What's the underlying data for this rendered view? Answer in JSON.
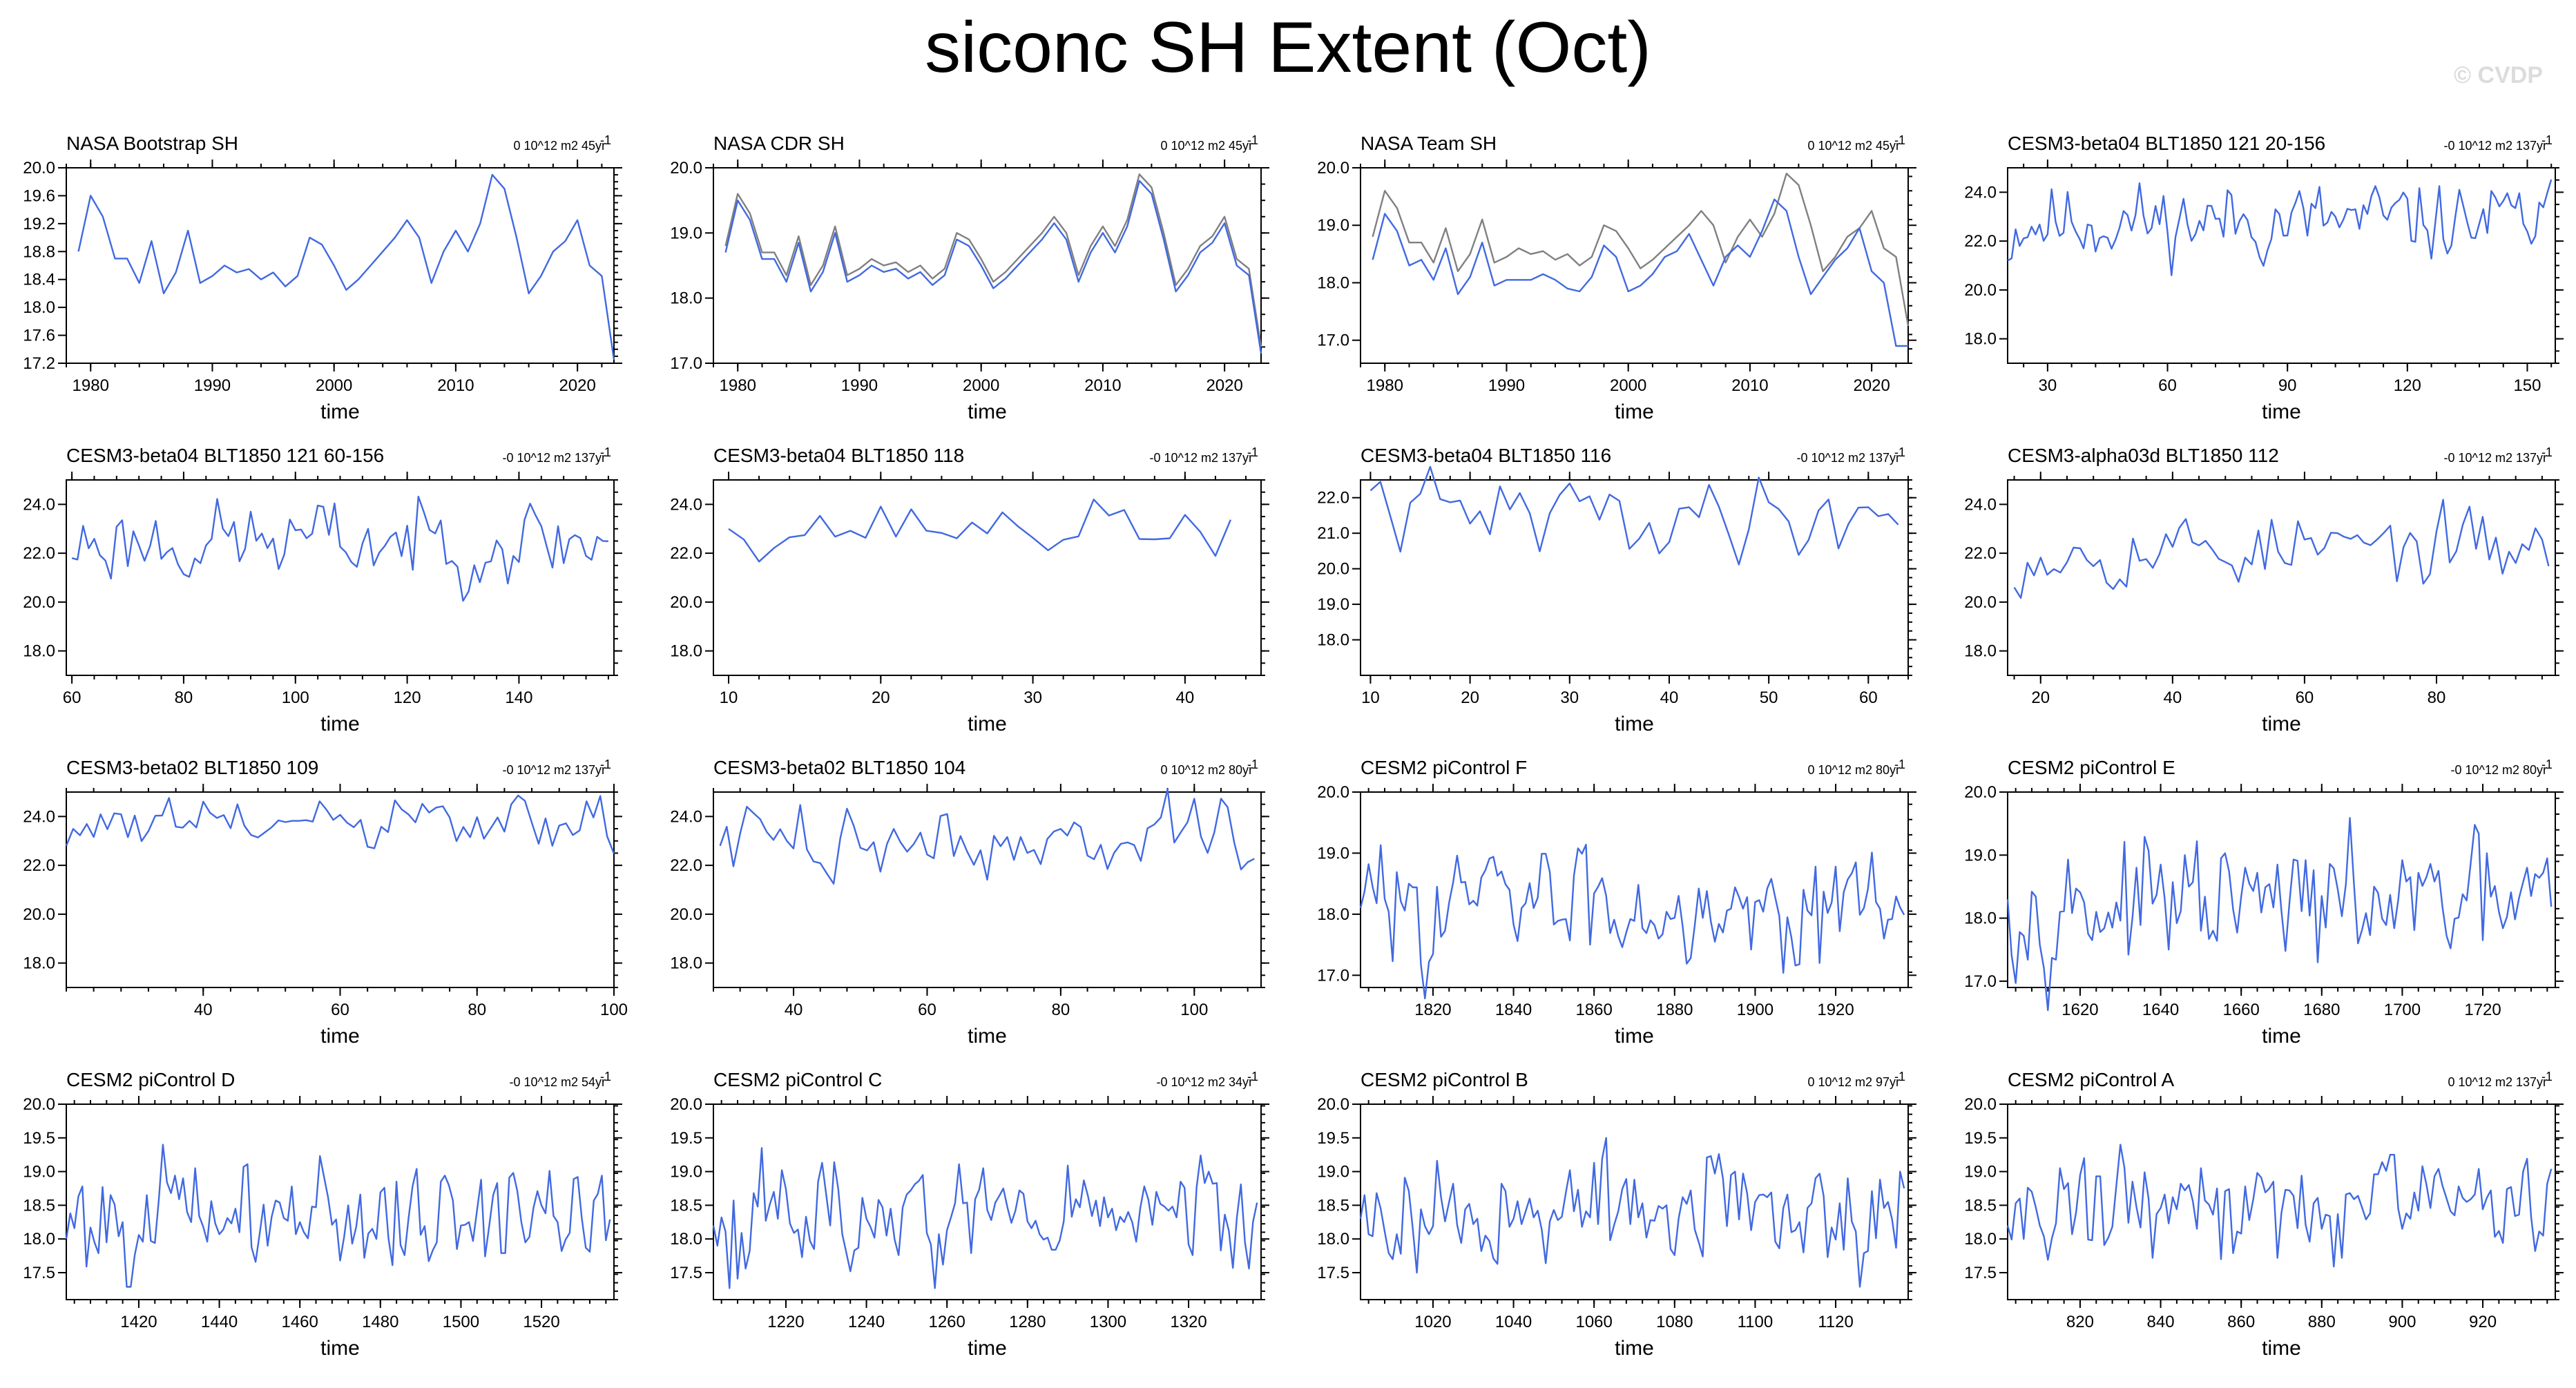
{
  "title": "siconc SH Extent (Oct)",
  "watermark": "© CVDP",
  "colors": {
    "model": "#4169e1",
    "obs": "#808080"
  },
  "chart_data": [
    {
      "type": "line",
      "title": "NASA Bootstrap SH",
      "trend": "0 10^12 m2 45yr",
      "xlabel": "time",
      "xlim": [
        1978,
        2023
      ],
      "ylim": [
        17.2,
        20.0
      ],
      "xticks": [
        1980,
        1990,
        2000,
        2010,
        2020
      ],
      "yticks": [
        "17.2",
        "17.6",
        "18.0",
        "18.4",
        "18.8",
        "19.2",
        "19.6",
        "20.0"
      ],
      "x": [
        1979,
        1980,
        1981,
        1982,
        1983,
        1984,
        1985,
        1986,
        1987,
        1988,
        1989,
        1990,
        1991,
        1992,
        1993,
        1994,
        1995,
        1996,
        1997,
        1998,
        1999,
        2000,
        2001,
        2002,
        2003,
        2004,
        2005,
        2006,
        2007,
        2008,
        2009,
        2010,
        2011,
        2012,
        2013,
        2014,
        2015,
        2016,
        2017,
        2018,
        2019,
        2020,
        2021,
        2022,
        2023
      ],
      "series": [
        {
          "values": [
            18.8,
            19.6,
            19.3,
            18.7,
            18.7,
            18.35,
            18.95,
            18.2,
            18.5,
            19.1,
            18.35,
            18.45,
            18.6,
            18.5,
            18.55,
            18.4,
            18.5,
            18.3,
            18.45,
            19.0,
            18.9,
            18.6,
            18.25,
            18.4,
            18.6,
            18.8,
            19.0,
            19.25,
            19.0,
            18.35,
            18.8,
            19.1,
            18.8,
            19.2,
            19.9,
            19.7,
            19.0,
            18.2,
            18.45,
            18.8,
            18.95,
            19.25,
            18.6,
            18.45,
            17.25
          ]
        }
      ]
    },
    {
      "type": "line",
      "title": "NASA CDR SH",
      "trend": "0 10^12 m2 45yr",
      "xlabel": "time",
      "xlim": [
        1978,
        2023
      ],
      "ylim": [
        17.0,
        20.0
      ],
      "xticks": [
        1980,
        1990,
        2000,
        2010,
        2020
      ],
      "yticks": [
        "17.0",
        "18.0",
        "19.0",
        "20.0"
      ],
      "x": [
        1979,
        1980,
        1981,
        1982,
        1983,
        1984,
        1985,
        1986,
        1987,
        1988,
        1989,
        1990,
        1991,
        1992,
        1993,
        1994,
        1995,
        1996,
        1997,
        1998,
        1999,
        2000,
        2001,
        2002,
        2003,
        2004,
        2005,
        2006,
        2007,
        2008,
        2009,
        2010,
        2011,
        2012,
        2013,
        2014,
        2015,
        2016,
        2017,
        2018,
        2019,
        2020,
        2021,
        2022,
        2023
      ],
      "series": [
        {
          "color": "obs",
          "values": [
            18.8,
            19.6,
            19.3,
            18.7,
            18.7,
            18.35,
            18.95,
            18.2,
            18.5,
            19.1,
            18.35,
            18.45,
            18.6,
            18.5,
            18.55,
            18.4,
            18.5,
            18.3,
            18.45,
            19.0,
            18.9,
            18.6,
            18.25,
            18.4,
            18.6,
            18.8,
            19.0,
            19.25,
            19.0,
            18.35,
            18.8,
            19.1,
            18.8,
            19.2,
            19.9,
            19.7,
            19.0,
            18.2,
            18.45,
            18.8,
            18.95,
            19.25,
            18.6,
            18.45,
            17.25
          ]
        },
        {
          "color": "model",
          "values": [
            18.7,
            19.5,
            19.2,
            18.6,
            18.6,
            18.25,
            18.85,
            18.1,
            18.4,
            19.0,
            18.25,
            18.35,
            18.5,
            18.4,
            18.45,
            18.3,
            18.4,
            18.2,
            18.35,
            18.9,
            18.8,
            18.5,
            18.15,
            18.3,
            18.5,
            18.7,
            18.9,
            19.15,
            18.9,
            18.25,
            18.7,
            19.0,
            18.7,
            19.1,
            19.8,
            19.6,
            18.9,
            18.1,
            18.35,
            18.7,
            18.85,
            19.15,
            18.5,
            18.35,
            17.15
          ]
        }
      ]
    },
    {
      "type": "line",
      "title": "NASA Team SH",
      "trend": "0 10^12 m2 45yr",
      "xlabel": "time",
      "xlim": [
        1978,
        2023
      ],
      "ylim": [
        16.6,
        20.0
      ],
      "xticks": [
        1980,
        1990,
        2000,
        2010,
        2020
      ],
      "yticks": [
        "17.0",
        "18.0",
        "19.0",
        "20.0"
      ],
      "x": [
        1979,
        1980,
        1981,
        1982,
        1983,
        1984,
        1985,
        1986,
        1987,
        1988,
        1989,
        1990,
        1991,
        1992,
        1993,
        1994,
        1995,
        1996,
        1997,
        1998,
        1999,
        2000,
        2001,
        2002,
        2003,
        2004,
        2005,
        2006,
        2007,
        2008,
        2009,
        2010,
        2011,
        2012,
        2013,
        2014,
        2015,
        2016,
        2017,
        2018,
        2019,
        2020,
        2021,
        2022,
        2023
      ],
      "series": [
        {
          "color": "obs",
          "values": [
            18.8,
            19.6,
            19.3,
            18.7,
            18.7,
            18.35,
            18.95,
            18.2,
            18.5,
            19.1,
            18.35,
            18.45,
            18.6,
            18.5,
            18.55,
            18.4,
            18.5,
            18.3,
            18.45,
            19.0,
            18.9,
            18.6,
            18.25,
            18.4,
            18.6,
            18.8,
            19.0,
            19.25,
            19.0,
            18.35,
            18.8,
            19.1,
            18.8,
            19.2,
            19.9,
            19.7,
            19.0,
            18.2,
            18.45,
            18.8,
            18.95,
            19.25,
            18.6,
            18.45,
            17.25
          ]
        },
        {
          "color": "model",
          "values": [
            18.4,
            19.2,
            18.9,
            18.3,
            18.4,
            18.05,
            18.6,
            17.8,
            18.1,
            18.7,
            17.95,
            18.05,
            18.05,
            18.05,
            18.15,
            18.05,
            17.9,
            17.85,
            18.1,
            18.65,
            18.45,
            17.85,
            17.95,
            18.15,
            18.45,
            18.55,
            18.85,
            18.4,
            17.95,
            18.45,
            18.65,
            18.45,
            18.9,
            19.45,
            19.25,
            18.45,
            17.8,
            18.1,
            18.4,
            18.6,
            18.95,
            18.2,
            18.0,
            16.9,
            16.9
          ]
        }
      ]
    },
    {
      "type": "line",
      "title": "CESM3-beta04 BLT1850 121 20-156",
      "trend": "-0 10^12 m2 137yr",
      "xlabel": "time",
      "xlim": [
        20,
        157
      ],
      "ylim": [
        17.0,
        25.0
      ],
      "xticks": [
        30,
        60,
        90,
        120,
        150
      ],
      "yticks": [
        "18.0",
        "20.0",
        "22.0",
        "24.0"
      ],
      "gen": {
        "start": 20,
        "end": 156,
        "mean": 22.8,
        "amp": 0.75,
        "seed": 11,
        "first": 21.2
      }
    },
    {
      "type": "line",
      "title": "CESM3-beta04 BLT1850 121 60-156",
      "trend": "-0 10^12 m2 137yr",
      "xlabel": "time",
      "xlim": [
        59,
        157
      ],
      "ylim": [
        17.0,
        25.0
      ],
      "xticks": [
        60,
        80,
        100,
        120,
        140
      ],
      "yticks": [
        "18.0",
        "20.0",
        "22.0",
        "24.0"
      ],
      "gen": {
        "start": 60,
        "end": 156,
        "mean": 22.5,
        "amp": 0.8,
        "seed": 23,
        "first": 21.8
      }
    },
    {
      "type": "line",
      "title": "CESM3-beta04 BLT1850 118",
      "trend": "-0 10^12 m2 137yr",
      "xlabel": "time",
      "xlim": [
        9,
        45
      ],
      "ylim": [
        17.0,
        25.0
      ],
      "xticks": [
        10,
        20,
        30,
        40
      ],
      "yticks": [
        "18.0",
        "20.0",
        "22.0",
        "24.0"
      ],
      "gen": {
        "start": 10,
        "end": 43,
        "mean": 23.1,
        "amp": 0.55,
        "seed": 37,
        "first": 23.0
      }
    },
    {
      "type": "line",
      "title": "CESM3-beta04 BLT1850 116",
      "trend": "-0 10^12 m2 137yr",
      "xlabel": "time",
      "xlim": [
        9,
        64
      ],
      "ylim": [
        17.0,
        22.5
      ],
      "xticks": [
        10,
        20,
        30,
        40,
        50,
        60
      ],
      "yticks": [
        "18.0",
        "19.0",
        "20.0",
        "21.0",
        "22.0"
      ],
      "gen": {
        "start": 10,
        "end": 63,
        "mean": 21.5,
        "amp": 0.55,
        "seed": 41,
        "first": 22.2
      }
    },
    {
      "type": "line",
      "title": "CESM3-alpha03d BLT1850 112",
      "trend": "-0 10^12 m2 137yr",
      "xlabel": "time",
      "xlim": [
        15,
        98
      ],
      "ylim": [
        17.0,
        25.0
      ],
      "xticks": [
        20,
        40,
        60,
        80
      ],
      "yticks": [
        "18.0",
        "20.0",
        "22.0",
        "24.0"
      ],
      "gen": {
        "start": 16,
        "end": 97,
        "mean": 22.2,
        "amp": 0.7,
        "seed": 53,
        "first": 20.6
      }
    },
    {
      "type": "line",
      "title": "CESM3-beta02 BLT1850 109",
      "trend": "-0 10^12 m2 137yr",
      "xlabel": "time",
      "xlim": [
        20,
        100
      ],
      "ylim": [
        17.0,
        25.0
      ],
      "xticks": [
        40,
        60,
        80,
        100
      ],
      "yticks": [
        "18.0",
        "20.0",
        "22.0",
        "24.0"
      ],
      "gen": {
        "start": 20,
        "end": 100,
        "mean": 23.6,
        "amp": 0.55,
        "seed": 61,
        "first": 22.8
      }
    },
    {
      "type": "line",
      "title": "CESM3-beta02 BLT1850 104",
      "trend": "0 10^12 m2 80yr",
      "xlabel": "time",
      "xlim": [
        28,
        110
      ],
      "ylim": [
        17.0,
        25.0
      ],
      "xticks": [
        40,
        60,
        80,
        100
      ],
      "yticks": [
        "18.0",
        "20.0",
        "22.0",
        "24.0"
      ],
      "gen": {
        "start": 29,
        "end": 109,
        "mean": 23.0,
        "amp": 0.7,
        "seed": 73,
        "first": 22.8
      }
    },
    {
      "type": "line",
      "title": "CESM2 piControl F",
      "trend": "0 10^12 m2 80yr",
      "xlabel": "time",
      "xlim": [
        1802,
        1938
      ],
      "ylim": [
        16.8,
        20.0
      ],
      "xticks": [
        1820,
        1840,
        1860,
        1880,
        1900,
        1920
      ],
      "yticks": [
        "17.0",
        "18.0",
        "19.0",
        "20.0"
      ],
      "gen": {
        "start": 1802,
        "end": 1937,
        "mean": 18.2,
        "amp": 0.45,
        "seed": 83,
        "first": 18.1
      }
    },
    {
      "type": "line",
      "title": "CESM2 piControl E",
      "trend": "-0 10^12 m2 80yr",
      "xlabel": "time",
      "xlim": [
        1602,
        1738
      ],
      "ylim": [
        16.9,
        20.0
      ],
      "xticks": [
        1620,
        1640,
        1660,
        1680,
        1700,
        1720
      ],
      "yticks": [
        "17.0",
        "18.0",
        "19.0",
        "20.0"
      ],
      "gen": {
        "start": 1602,
        "end": 1737,
        "mean": 18.2,
        "amp": 0.45,
        "seed": 97,
        "first": 18.3
      }
    },
    {
      "type": "line",
      "title": "CESM2 piControl D",
      "trend": "-0 10^12 m2 54yr",
      "xlabel": "time",
      "xlim": [
        1402,
        1538
      ],
      "ylim": [
        17.1,
        20.0
      ],
      "xticks": [
        1420,
        1440,
        1460,
        1480,
        1500,
        1520
      ],
      "yticks": [
        "17.5",
        "18.0",
        "18.5",
        "19.0",
        "19.5",
        "20.0"
      ],
      "gen": {
        "start": 1402,
        "end": 1537,
        "mean": 18.35,
        "amp": 0.4,
        "seed": 101,
        "first": 18.0
      }
    },
    {
      "type": "line",
      "title": "CESM2 piControl C",
      "trend": "-0 10^12 m2 34yr",
      "xlabel": "time",
      "xlim": [
        1202,
        1338
      ],
      "ylim": [
        17.1,
        20.0
      ],
      "xticks": [
        1220,
        1240,
        1260,
        1280,
        1300,
        1320
      ],
      "yticks": [
        "17.5",
        "18.0",
        "18.5",
        "19.0",
        "19.5",
        "20.0"
      ],
      "gen": {
        "start": 1202,
        "end": 1337,
        "mean": 18.35,
        "amp": 0.4,
        "seed": 113,
        "first": 18.2
      }
    },
    {
      "type": "line",
      "title": "CESM2 piControl B",
      "trend": "0 10^12 m2 97yr",
      "xlabel": "time",
      "xlim": [
        1002,
        1138
      ],
      "ylim": [
        17.1,
        20.0
      ],
      "xticks": [
        1020,
        1040,
        1060,
        1080,
        1100,
        1120
      ],
      "yticks": [
        "17.5",
        "18.0",
        "18.5",
        "19.0",
        "19.5",
        "20.0"
      ],
      "gen": {
        "start": 1002,
        "end": 1137,
        "mean": 18.4,
        "amp": 0.4,
        "seed": 127,
        "first": 18.3
      }
    },
    {
      "type": "line",
      "title": "CESM2 piControl A",
      "trend": "0 10^12 m2 137yr",
      "xlabel": "time",
      "xlim": [
        802,
        938
      ],
      "ylim": [
        17.1,
        20.0
      ],
      "xticks": [
        820,
        840,
        860,
        880,
        900,
        920
      ],
      "yticks": [
        "17.5",
        "18.0",
        "18.5",
        "19.0",
        "19.5",
        "20.0"
      ],
      "gen": {
        "start": 802,
        "end": 937,
        "mean": 18.5,
        "amp": 0.38,
        "seed": 131,
        "first": 18.2
      }
    }
  ]
}
